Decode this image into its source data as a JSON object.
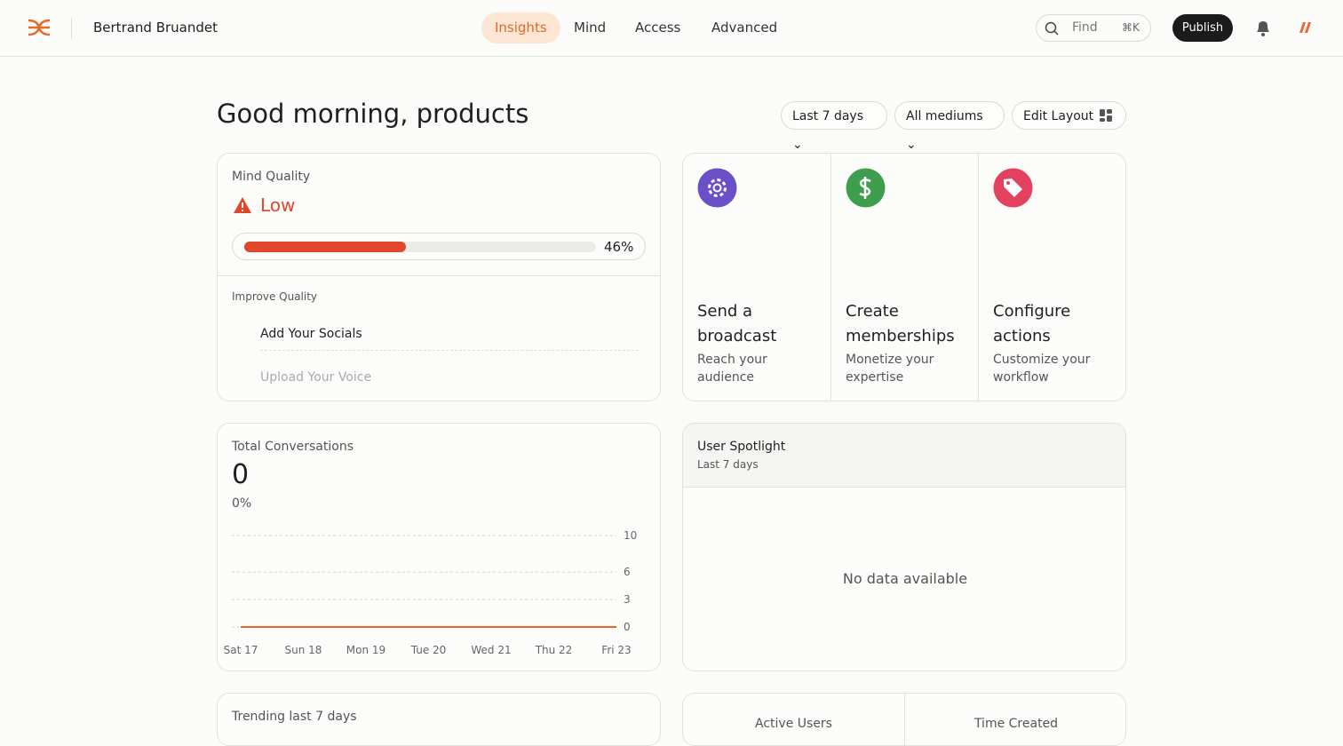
{
  "nav": {
    "brand": "Bertrand Bruandet",
    "tabs": [
      "Insights",
      "Mind",
      "Access",
      "Advanced"
    ],
    "search": "Find",
    "shortcut": "⌘K",
    "publish": "Publish"
  },
  "header": {
    "greeting": "Good morning, products",
    "filters": [
      "Last 7 days",
      "All mediums"
    ],
    "edit_layout": "Edit Layout"
  },
  "mind_quality": {
    "title": "Mind Quality",
    "level": "Low",
    "progress": {
      "value": 46,
      "label": "46%"
    },
    "improve_title": "Improve Quality",
    "items": [
      "Add Your Socials",
      "Upload Your Voice"
    ]
  },
  "actions": [
    {
      "title": "Send a broadcast",
      "subtitle": "Reach your audience",
      "color": "#6a4fc9"
    },
    {
      "title": "Create memberships",
      "subtitle": "Monetize your expertise",
      "color": "#3f9e4d"
    },
    {
      "title": "Configure actions",
      "subtitle": "Customize your workflow",
      "color": "#e4405f"
    }
  ],
  "conversations": {
    "title": "Total Conversations",
    "total": 0,
    "change": "0%",
    "chart_data": {
      "type": "line",
      "x": [
        "Sat 17",
        "Sun 18",
        "Mon 19",
        "Tue 20",
        "Wed 21",
        "Thu 22",
        "Fri 23"
      ],
      "values": [
        0,
        0,
        0,
        0,
        0,
        0,
        0
      ],
      "ylim": [
        0,
        10
      ],
      "yticks": [
        0,
        3,
        6,
        10
      ],
      "color": "#e8672a",
      "grid": true
    }
  },
  "spotlight": {
    "title": "User Spotlight",
    "subtitle": "Last 7 days",
    "empty": "No data available"
  },
  "trending": {
    "title": "Trending last 7 days"
  },
  "stats": [
    "Active Users",
    "Time Created"
  ]
}
